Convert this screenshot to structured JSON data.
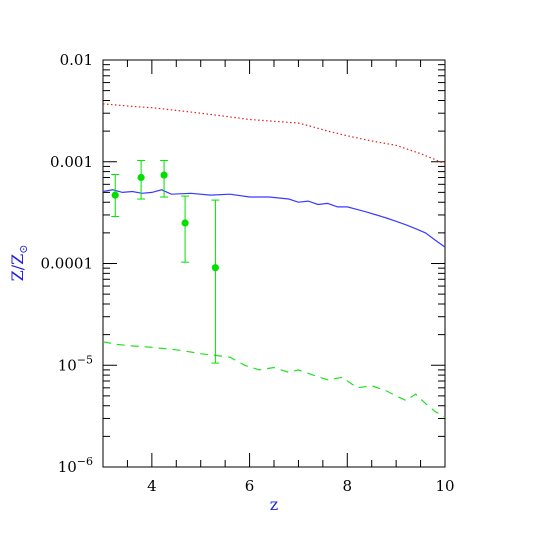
{
  "chart_data": {
    "type": "line",
    "xlabel": "z",
    "ylabel_main": "Z/Z",
    "ylabel_sub": "⊙",
    "xscale": "linear",
    "yscale": "log",
    "xlim": [
      3,
      10
    ],
    "ylim": [
      1e-06,
      0.01
    ],
    "grid": false,
    "legend": "none",
    "x_ticks": [
      {
        "value": 4,
        "label": "4"
      },
      {
        "value": 6,
        "label": "6"
      },
      {
        "value": 8,
        "label": "8"
      },
      {
        "value": 10,
        "label": "10"
      }
    ],
    "y_ticks": [
      {
        "value": 0.01,
        "label": "0.01",
        "base": "",
        "exp": ""
      },
      {
        "value": 0.001,
        "label": "0.001",
        "base": "",
        "exp": ""
      },
      {
        "value": 0.0001,
        "label": "0.0001",
        "base": "",
        "exp": ""
      },
      {
        "value": 1e-05,
        "label": "",
        "base": "10",
        "exp": "−5"
      },
      {
        "value": 1e-06,
        "label": "",
        "base": "10",
        "exp": "−6"
      }
    ],
    "series": [
      {
        "style": "dotted",
        "color": "#e02020",
        "x": [
          3.0,
          3.3,
          3.6,
          4.0,
          4.5,
          5.0,
          5.5,
          6.0,
          6.5,
          7.0,
          7.3,
          7.6,
          8.0,
          8.5,
          9.0,
          9.5,
          9.8,
          10.0
        ],
        "y": [
          0.0037,
          0.0036,
          0.0035,
          0.0034,
          0.0032,
          0.003,
          0.0028,
          0.0026,
          0.0025,
          0.0024,
          0.0022,
          0.002,
          0.0018,
          0.0016,
          0.00145,
          0.0012,
          0.00105,
          0.00095
        ]
      },
      {
        "style": "solid",
        "color": "#3a3aff",
        "x": [
          3.0,
          3.2,
          3.4,
          3.6,
          3.8,
          4.0,
          4.2,
          4.4,
          4.8,
          5.2,
          5.6,
          6.0,
          6.4,
          6.8,
          7.0,
          7.2,
          7.4,
          7.6,
          7.8,
          8.0,
          8.2,
          8.4,
          8.6,
          8.8,
          9.0,
          9.2,
          9.4,
          9.6,
          9.8,
          10.0
        ],
        "y": [
          0.00051,
          0.00053,
          0.0005,
          0.00051,
          0.00049,
          0.0005,
          0.00053,
          0.00048,
          0.00049,
          0.00047,
          0.00048,
          0.00045,
          0.00045,
          0.00043,
          0.0004,
          0.00041,
          0.00038,
          0.00039,
          0.00036,
          0.00036,
          0.00034,
          0.00032,
          0.0003,
          0.00028,
          0.00026,
          0.00024,
          0.00022,
          0.0002,
          0.00017,
          0.000145
        ]
      },
      {
        "style": "dashed",
        "color": "#20e020",
        "x": [
          3.0,
          3.3,
          3.6,
          4.0,
          4.3,
          4.6,
          5.0,
          5.3,
          5.6,
          5.9,
          6.2,
          6.5,
          6.8,
          7.0,
          7.3,
          7.6,
          7.9,
          8.2,
          8.5,
          8.8,
          9.0,
          9.2,
          9.4,
          9.6,
          9.8,
          10.0
        ],
        "y": [
          1.7e-05,
          1.6e-05,
          1.55e-05,
          1.5e-05,
          1.45e-05,
          1.4e-05,
          1.3e-05,
          1.25e-05,
          1.2e-05,
          1e-05,
          9e-06,
          9.5e-06,
          8.5e-06,
          9e-06,
          8e-06,
          7.2e-06,
          7.6e-06,
          6e-06,
          6.3e-06,
          5.6e-06,
          5e-06,
          4.5e-06,
          5.2e-06,
          4.2e-06,
          3.5e-06,
          3.1e-06
        ]
      }
    ],
    "points": {
      "color": "#00e000",
      "data": [
        {
          "x": 3.25,
          "y": 0.00047,
          "lo": 0.00029,
          "hi": 0.00075
        },
        {
          "x": 3.78,
          "y": 0.0007,
          "lo": 0.00043,
          "hi": 0.00103
        },
        {
          "x": 4.25,
          "y": 0.00074,
          "lo": 0.00045,
          "hi": 0.00103
        },
        {
          "x": 4.68,
          "y": 0.00025,
          "lo": 0.000103,
          "hi": 0.00046
        },
        {
          "x": 5.3,
          "y": 9.1e-05,
          "lo": 1.05e-05,
          "hi": 0.00042
        }
      ]
    }
  }
}
